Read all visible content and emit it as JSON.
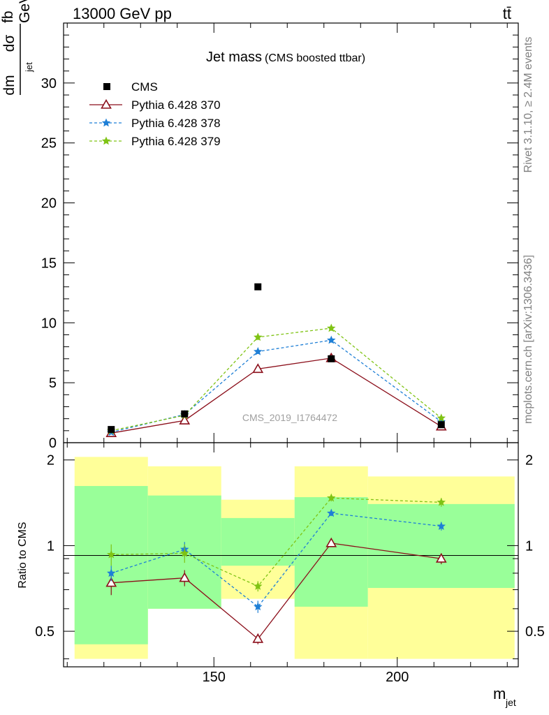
{
  "header": {
    "beam": "13000 GeV pp",
    "process": "tt̄",
    "rivet": "Rivet 3.1.10, ≥ 2.4M events",
    "source": "mcplots.cern.ch [arXiv:1306.3436]",
    "analysis": "CMS_2019_I1764472"
  },
  "chart_data": {
    "type": "scatter",
    "title": "Jet mass",
    "subtitle": "(CMS boosted ttbar)",
    "ylabel": {
      "num_d": "dσ",
      "num_u": "fb",
      "den_d": "dm",
      "den_sub": "jet",
      "den_u": "GeV"
    },
    "xlabel": {
      "main": "m",
      "sub": "jet"
    },
    "xlim": [
      109,
      233
    ],
    "ylim": [
      0,
      35
    ],
    "x_ticks": [
      "150",
      "200"
    ],
    "y_ticks": [
      "0",
      "5",
      "10",
      "15",
      "20",
      "25",
      "30"
    ],
    "bins": [
      [
        112,
        132
      ],
      [
        132,
        152
      ],
      [
        152,
        172
      ],
      [
        172,
        192
      ],
      [
        192,
        232
      ]
    ],
    "x": [
      122,
      142,
      162,
      182,
      212
    ],
    "cms": {
      "name": "CMS",
      "values": [
        1.1,
        2.4,
        13.0,
        7.0,
        1.5
      ],
      "color": "#000000"
    },
    "series": [
      {
        "name": "Pythia 6.428 370",
        "values": [
          0.8,
          1.85,
          6.15,
          7.05,
          1.35
        ],
        "errors": [
          0.12,
          0.1,
          0.15,
          0.15,
          0.06
        ],
        "color": "#8b0e1a",
        "dash": "solid",
        "marker": "triangle"
      },
      {
        "name": "Pythia 6.428 378",
        "values": [
          0.87,
          2.35,
          7.6,
          8.55,
          1.75
        ],
        "errors": [
          0.1,
          0.12,
          0.2,
          0.2,
          0.07
        ],
        "color": "#1e7fd6",
        "dash": "dashed",
        "marker": "star"
      },
      {
        "name": "Pythia 6.428 379",
        "values": [
          1.0,
          2.28,
          8.8,
          9.55,
          2.05
        ],
        "errors": [
          0.12,
          0.14,
          0.25,
          0.22,
          0.08
        ],
        "color": "#7fc314",
        "dash": "dashed",
        "marker": "star"
      }
    ],
    "ratio": {
      "ylabel": "Ratio to CMS",
      "ylim": [
        0.375,
        2.3
      ],
      "y_ticks": [
        "0.5",
        "1",
        "2"
      ],
      "band_yellow": [
        [
          0.4,
          2.05
        ],
        [
          0.6,
          1.9
        ],
        [
          0.65,
          1.45
        ],
        [
          0.4,
          1.9
        ],
        [
          0.4,
          1.75
        ]
      ],
      "band_green": [
        [
          0.45,
          1.62
        ],
        [
          0.6,
          1.5
        ],
        [
          0.85,
          1.25
        ],
        [
          0.61,
          1.48
        ],
        [
          0.71,
          1.4
        ]
      ],
      "series": [
        {
          "values": [
            0.74,
            0.77,
            0.47,
            1.02,
            0.9
          ],
          "errors": [
            0.07,
            0.05,
            0.02,
            0.02,
            0.04
          ]
        },
        {
          "values": [
            0.8,
            0.97,
            0.61,
            1.3,
            1.17
          ],
          "errors": [
            0.05,
            0.06,
            0.03,
            0.03,
            0.04
          ]
        },
        {
          "values": [
            0.93,
            0.94,
            0.72,
            1.47,
            1.42
          ],
          "errors": [
            0.08,
            0.07,
            0.03,
            0.04,
            0.05
          ]
        }
      ]
    }
  }
}
